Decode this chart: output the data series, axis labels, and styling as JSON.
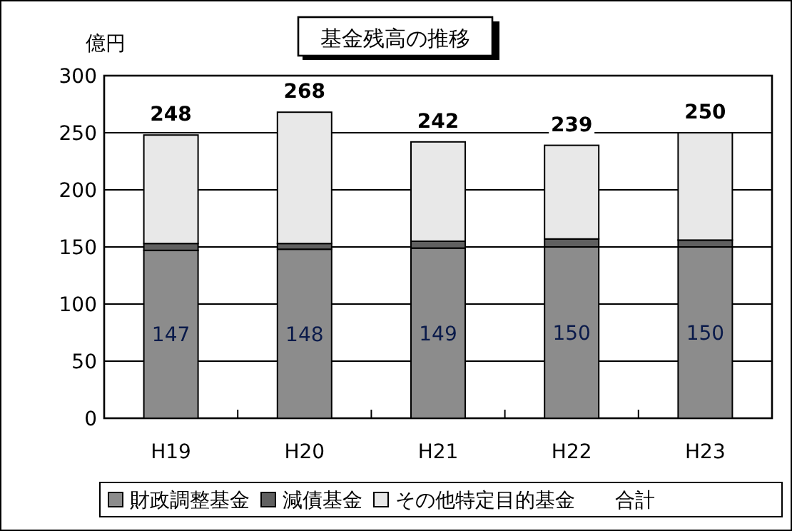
{
  "chart_data": {
    "type": "bar",
    "stacked": true,
    "title": "基金残高の推移",
    "ylabel": "億円",
    "categories": [
      "H19",
      "H20",
      "H21",
      "H22",
      "H23"
    ],
    "series": [
      {
        "name": "財政調整基金",
        "color": "#8c8c8c",
        "values": [
          147,
          148,
          149,
          150,
          150
        ],
        "value_labels": [
          "147",
          "148",
          "149",
          "150",
          "150"
        ]
      },
      {
        "name": "減債基金",
        "color": "#606060",
        "values": [
          6,
          5,
          6,
          7,
          6
        ]
      },
      {
        "name": "その他特定目的基金",
        "color": "#e8e8e8",
        "values": [
          95,
          115,
          87,
          82,
          94
        ]
      }
    ],
    "totals": [
      "248",
      "268",
      "242",
      "239",
      "250"
    ],
    "annotations": [
      "合計"
    ],
    "ylim": [
      0,
      300
    ],
    "yticks": [
      0,
      50,
      100,
      150,
      200,
      250,
      300
    ],
    "grid": "y",
    "legend": "bottom"
  }
}
